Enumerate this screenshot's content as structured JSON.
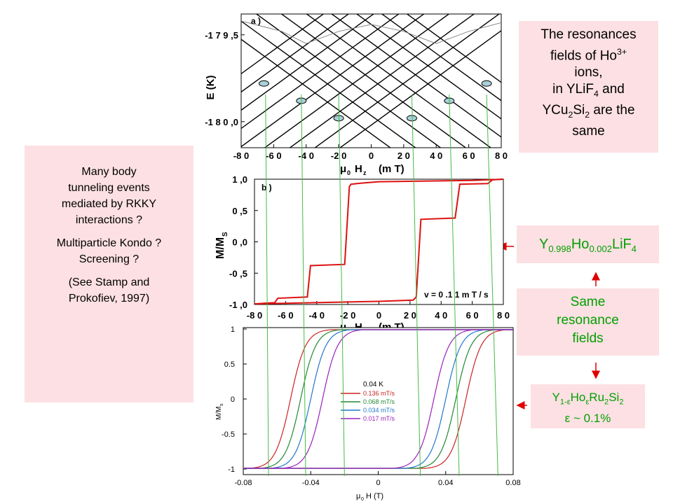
{
  "left_box": {
    "line1": "Many body",
    "line2": "tunneling events",
    "line3": "mediated by RKKY",
    "line4": "interactions ?",
    "line5": "Multiparticle Kondo ?",
    "line6": "Screening ?",
    "line7": "(See Stamp and",
    "line8": "Prokofiev,  1997)"
  },
  "resonance_box": {
    "line1": "The resonances",
    "line2_a": "fields of  Ho",
    "line2_sup": "3+",
    "line3": "ions,",
    "line4_a": "in YLiF",
    "line4_sub": "4",
    "line4_b": " and",
    "line5_a": "YCu",
    "line5_sub1": "2",
    "line5_b": "Si",
    "line5_sub2": "2",
    "line5_c": " are the",
    "line6": "same"
  },
  "formula1": {
    "a": "Y",
    "sub1": "0.998",
    "b": "Ho",
    "sub2": "0.002",
    "c": "LiF",
    "sub3": "4"
  },
  "same_box": {
    "line1": "Same",
    "line2": "resonance",
    "line3": "fields"
  },
  "formula2": {
    "a": "Y",
    "sub1": "1-ε",
    "b": "Ho",
    "sub2": "ε",
    "c": "Ru",
    "sub3": "2",
    "d": "Si",
    "sub4": "2",
    "line2": "ε  ~  0.1%"
  },
  "colors": {
    "pink_box": "#fde0e3",
    "green_text": "#00a000",
    "arrow": "#e00000",
    "curve_red": "#dd1111",
    "guide_green": "#44bb44"
  },
  "resonance_lines_mT": [
    -65,
    -43,
    -20,
    25,
    48,
    71
  ],
  "chart_data": [
    {
      "type": "line",
      "panel_label": "a )",
      "xlabel_mu": "μ",
      "xlabel_sub": "0",
      "xlabel_rest": "H",
      "xlabel_sub2": "z",
      "xlabel_unit": "(m T)",
      "ylabel": "E (K)",
      "xlim": [
        -80,
        80
      ],
      "xticks": [
        "-8 0",
        "-6 0",
        "-4 0",
        "-2 0",
        "0",
        "2 0",
        "4 0",
        "6 0",
        "8 0"
      ],
      "ytick_labels": [
        "-1 7 9 ,5",
        "-1 8 0 ,0"
      ],
      "ytick_values": [
        -179.5,
        -180.0
      ],
      "ylim": [
        -180.15,
        -179.38
      ],
      "level_slope_K_per_mT": 0.0068,
      "crossing_markers_mT": [
        -66,
        -43,
        -20,
        25,
        48,
        71
      ]
    },
    {
      "type": "line",
      "panel_label": "b )",
      "xlabel_mu": "μ",
      "xlabel_sub": "0",
      "xlabel_rest": "H",
      "xlabel_sub2": "z",
      "xlabel_unit": "(m T)",
      "ylabel": "M/M",
      "ylabel_sub": "S",
      "annotation": "v  =  0 .1 1  m T / s",
      "xlim": [
        -80,
        80
      ],
      "ylim": [
        -1.0,
        1.0
      ],
      "xticks": [
        "-8 0",
        "-6 0",
        "-4 0",
        "-2 0",
        "0",
        "2 0",
        "4 0",
        "6 0",
        "8 0"
      ],
      "yticks": [
        "1 ,0",
        "0 ,5",
        "0 ,0",
        "-0 ,5",
        "-1 ,0"
      ],
      "ytick_values": [
        1.0,
        0.5,
        0.0,
        -0.5,
        -1.0
      ],
      "series": [
        {
          "x": [
            -80,
            -70,
            -67,
            -66,
            -60,
            -46,
            -45,
            -44,
            -40,
            -22,
            -21,
            -20,
            -10,
            0,
            20,
            40,
            60,
            70,
            75,
            80
          ],
          "y": [
            0.99,
            0.99,
            0.99,
            0.99,
            0.99,
            0.99,
            0.99,
            0.99,
            0.99,
            0.97,
            0.96,
            0.95,
            0.96,
            0.97,
            0.98,
            0.98,
            0.98,
            0.99,
            0.99,
            0.99
          ]
        }
      ],
      "upsweep_steps_mT": [
        -66,
        -44,
        -20,
        25,
        48,
        71
      ],
      "upsweep_levels": [
        -1.0,
        -0.9,
        -0.38,
        0.88,
        0.92,
        0.93,
        0.99
      ]
    },
    {
      "type": "line",
      "annotation": "0.04 K",
      "xlabel_mu": "μ",
      "xlabel_sub": "0",
      "xlabel_rest": "H (T)",
      "ylabel": "M/M",
      "ylabel_sub": "s",
      "xlim": [
        -0.08,
        0.08
      ],
      "ylim": [
        -1.08,
        1.02
      ],
      "xticks": [
        "-0.08",
        "-0.04",
        "0",
        "0.04",
        "0.08"
      ],
      "xtick_values": [
        -0.08,
        -0.04,
        0,
        0.04,
        0.08
      ],
      "yticks": [
        "1",
        "0.5",
        "0",
        "-0.5",
        "-1"
      ],
      "ytick_values": [
        1,
        0.5,
        0,
        -0.5,
        -1
      ],
      "series": [
        {
          "name": "0.136 mT/s",
          "color": "#cc2222",
          "coercive_T": 0.052
        },
        {
          "name": "0.068 mT/s",
          "color": "#228833",
          "coercive_T": 0.046
        },
        {
          "name": "0.034 mT/s",
          "color": "#2277cc",
          "coercive_T": 0.04
        },
        {
          "name": "0.017 mT/s",
          "color": "#9922bb",
          "coercive_T": 0.033
        }
      ]
    }
  ]
}
